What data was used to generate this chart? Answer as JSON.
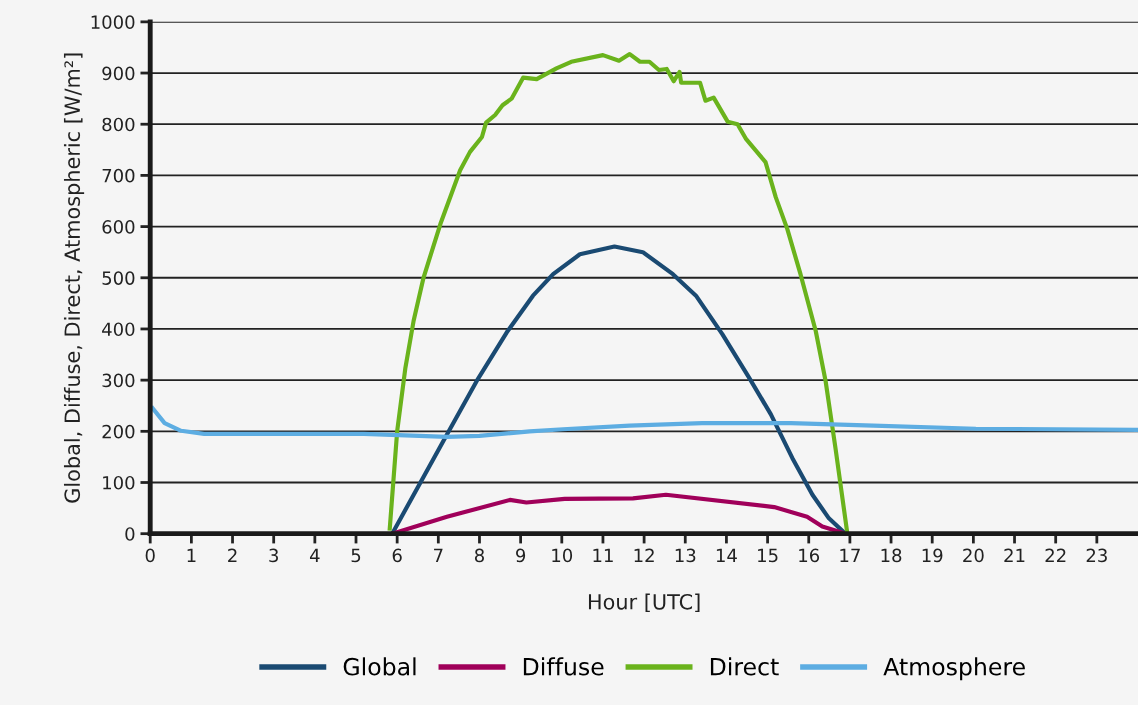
{
  "chart_data": {
    "type": "line",
    "xlabel": "Hour [UTC]",
    "ylabel": "Global, Diffuse, Direct, Atmospheric [W/m²]",
    "xlim": [
      0,
      24
    ],
    "xticks": [
      0,
      1,
      2,
      3,
      4,
      5,
      6,
      7,
      8,
      9,
      10,
      11,
      12,
      13,
      14,
      15,
      16,
      17,
      18,
      19,
      20,
      21,
      22,
      23
    ],
    "ylim": [
      0,
      1000
    ],
    "yticks": [
      0,
      100,
      200,
      300,
      400,
      500,
      600,
      700,
      800,
      900,
      1000
    ],
    "grid": "y",
    "legend": "bottom",
    "marker": "none",
    "line_style": "solid",
    "series": [
      {
        "name": "Global",
        "color": "#1a4a72",
        "x": [
          5.88,
          7.21,
          7.93,
          8.66,
          9.3,
          9.79,
          10.44,
          11.28,
          11.97,
          12.7,
          13.26,
          13.9,
          14.55,
          15.08,
          15.6,
          16.09,
          16.49,
          16.89
        ],
        "values": [
          0,
          194,
          298,
          393,
          465,
          507,
          546,
          561,
          550,
          507,
          465,
          390,
          305,
          233,
          148,
          76,
          30,
          0
        ]
      },
      {
        "name": "Diffuse",
        "color": "#a0005a",
        "x": [
          5.88,
          7.21,
          8.74,
          9.14,
          10.07,
          11.73,
          12.53,
          15.16,
          15.96,
          16.33,
          16.89
        ],
        "values": [
          0,
          33,
          66,
          61,
          68,
          69,
          76,
          52,
          33,
          14,
          0
        ]
      },
      {
        "name": "Direct",
        "color": "#6ab31c",
        "x": [
          5.82,
          6.0,
          6.2,
          6.4,
          6.64,
          7.05,
          7.53,
          7.77,
          8.06,
          8.16,
          8.38,
          8.56,
          8.78,
          9.06,
          9.39,
          9.87,
          10.23,
          11.0,
          11.39,
          11.65,
          11.9,
          12.13,
          12.36,
          12.55,
          12.72,
          12.86,
          12.9,
          13.36,
          13.49,
          13.69,
          14.03,
          14.27,
          14.47,
          14.71,
          14.95,
          15.2,
          15.48,
          15.8,
          16.17,
          16.41,
          16.65,
          16.93
        ],
        "values": [
          10,
          200,
          324,
          416,
          500,
          605,
          710,
          746,
          775,
          803,
          818,
          837,
          850,
          891,
          888,
          909,
          922,
          935,
          924,
          937,
          922,
          922,
          906,
          908,
          884,
          902,
          881,
          881,
          846,
          852,
          805,
          800,
          772,
          749,
          726,
          657,
          595,
          507,
          396,
          298,
          167,
          5
        ]
      },
      {
        "name": "Atmosphere",
        "color": "#5dade2",
        "x": [
          0.06,
          0.35,
          0.75,
          1.31,
          5.19,
          7.21,
          8.0,
          9.22,
          10.03,
          11.65,
          13.41,
          15.57,
          17.57,
          20.06,
          23.95
        ],
        "values": [
          245,
          216,
          201,
          195,
          195,
          189,
          191,
          200,
          204,
          211,
          216,
          216,
          211,
          205,
          203
        ]
      }
    ]
  }
}
